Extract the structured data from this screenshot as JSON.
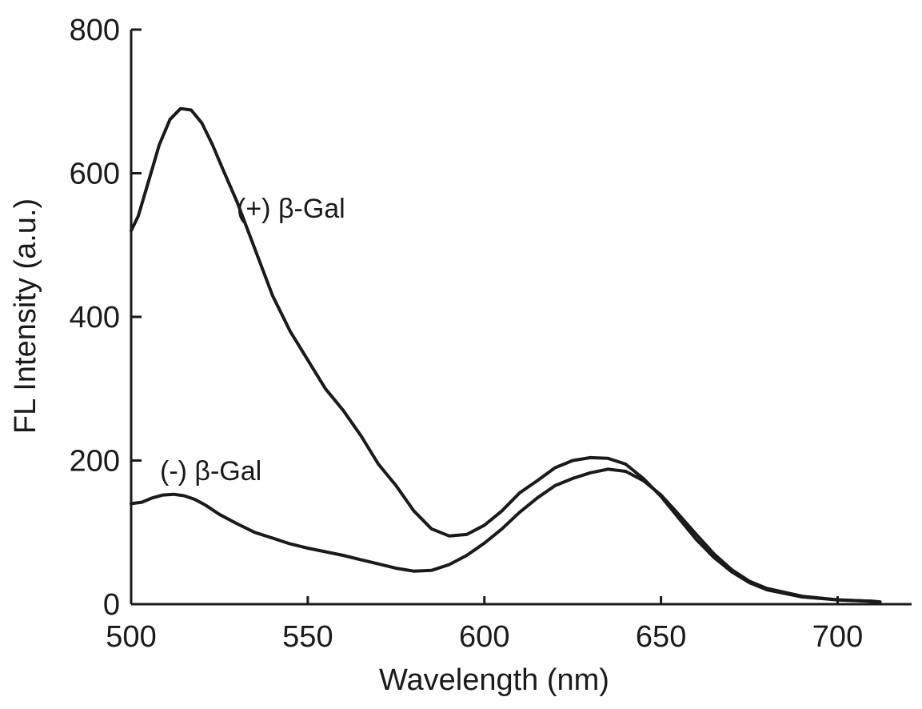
{
  "chart_data": {
    "type": "line",
    "xlabel": "Wavelength (nm)",
    "ylabel": "FL Intensity (a.u.)",
    "xlim": [
      500,
      720
    ],
    "ylim": [
      0,
      800
    ],
    "x_ticks": [
      500,
      550,
      600,
      650,
      700
    ],
    "y_ticks": [
      0,
      200,
      400,
      600,
      800
    ],
    "grid": false,
    "legend": "none",
    "annotations": [
      {
        "text": "(+) β-Gal",
        "series": 0
      },
      {
        "text": "(-) β-Gal",
        "series": 1
      }
    ],
    "series": [
      {
        "name": "(+) β-Gal",
        "color": "#1a1a1a",
        "points": [
          [
            500,
            520
          ],
          [
            502,
            540
          ],
          [
            505,
            590
          ],
          [
            508,
            640
          ],
          [
            511,
            675
          ],
          [
            514,
            690
          ],
          [
            517,
            688
          ],
          [
            520,
            670
          ],
          [
            523,
            640
          ],
          [
            526,
            605
          ],
          [
            530,
            560
          ],
          [
            535,
            495
          ],
          [
            540,
            430
          ],
          [
            545,
            380
          ],
          [
            550,
            340
          ],
          [
            555,
            300
          ],
          [
            560,
            270
          ],
          [
            565,
            235
          ],
          [
            570,
            195
          ],
          [
            575,
            165
          ],
          [
            580,
            130
          ],
          [
            585,
            105
          ],
          [
            590,
            95
          ],
          [
            595,
            97
          ],
          [
            600,
            110
          ],
          [
            605,
            130
          ],
          [
            610,
            155
          ],
          [
            615,
            172
          ],
          [
            620,
            190
          ],
          [
            625,
            200
          ],
          [
            630,
            204
          ],
          [
            635,
            203
          ],
          [
            640,
            195
          ],
          [
            645,
            175
          ],
          [
            650,
            150
          ],
          [
            655,
            120
          ],
          [
            660,
            90
          ],
          [
            665,
            65
          ],
          [
            670,
            45
          ],
          [
            675,
            30
          ],
          [
            680,
            20
          ],
          [
            690,
            10
          ],
          [
            700,
            6
          ],
          [
            710,
            4
          ],
          [
            712,
            3
          ]
        ]
      },
      {
        "name": "(-) β-Gal",
        "color": "#1a1a1a",
        "points": [
          [
            500,
            140
          ],
          [
            503,
            142
          ],
          [
            506,
            148
          ],
          [
            509,
            152
          ],
          [
            512,
            153
          ],
          [
            515,
            151
          ],
          [
            518,
            146
          ],
          [
            521,
            138
          ],
          [
            525,
            125
          ],
          [
            530,
            112
          ],
          [
            535,
            100
          ],
          [
            540,
            92
          ],
          [
            545,
            84
          ],
          [
            550,
            78
          ],
          [
            555,
            73
          ],
          [
            560,
            68
          ],
          [
            565,
            62
          ],
          [
            570,
            56
          ],
          [
            575,
            50
          ],
          [
            580,
            46
          ],
          [
            585,
            47
          ],
          [
            590,
            55
          ],
          [
            595,
            68
          ],
          [
            600,
            85
          ],
          [
            605,
            105
          ],
          [
            610,
            128
          ],
          [
            615,
            148
          ],
          [
            620,
            165
          ],
          [
            625,
            175
          ],
          [
            630,
            183
          ],
          [
            635,
            188
          ],
          [
            640,
            185
          ],
          [
            645,
            172
          ],
          [
            650,
            152
          ],
          [
            655,
            125
          ],
          [
            660,
            97
          ],
          [
            665,
            70
          ],
          [
            670,
            48
          ],
          [
            675,
            32
          ],
          [
            680,
            22
          ],
          [
            690,
            11
          ],
          [
            700,
            6
          ],
          [
            710,
            4
          ],
          [
            712,
            3
          ]
        ]
      }
    ]
  }
}
